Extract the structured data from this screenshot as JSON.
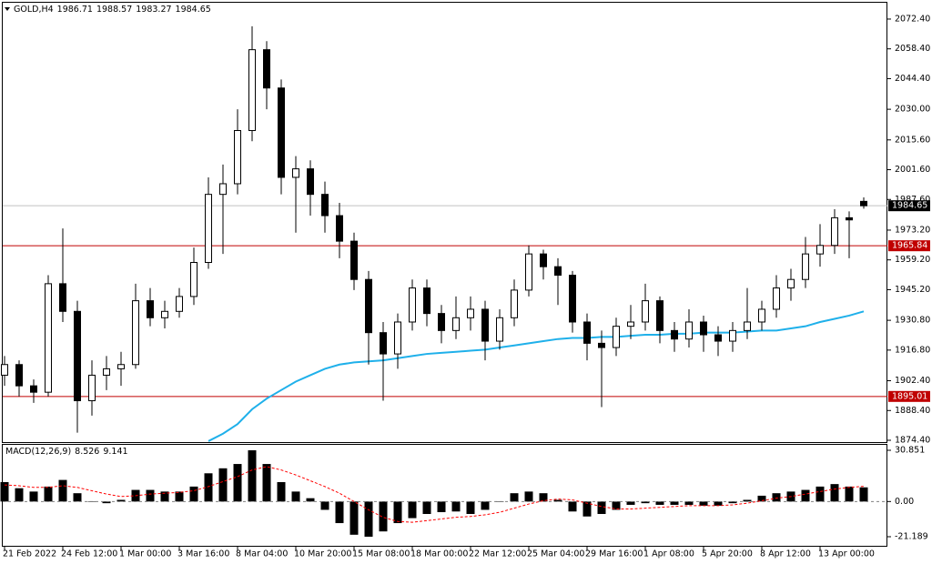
{
  "chart_data": [
    {
      "type": "candlestick",
      "symbol": "GOLD,H4",
      "categories": [
        "21 Feb 2022",
        null,
        null,
        null,
        "24 Feb 12:00",
        null,
        null,
        null,
        "1 Mar 00:00",
        null,
        null,
        null,
        "3 Mar 16:00",
        null,
        null,
        null,
        "8 Mar 04:00",
        null,
        null,
        null,
        "10 Mar 20:00",
        null,
        null,
        null,
        "15 Mar 08:00",
        null,
        null,
        null,
        "18 Mar 00:00",
        null,
        null,
        null,
        "22 Mar 12:00",
        null,
        null,
        null,
        "25 Mar 04:00",
        null,
        null,
        null,
        "29 Mar 16:00",
        null,
        null,
        null,
        "1 Apr 08:00",
        null,
        null,
        null,
        "5 Apr 20:00",
        null,
        null,
        null,
        "8 Apr 12:00",
        null,
        null,
        null,
        "13 Apr 00:00",
        null,
        null,
        null
      ],
      "open": [
        1905,
        1910,
        1900,
        1897,
        1948,
        1935,
        1893,
        1905,
        1908,
        1910,
        1940,
        1932,
        1935,
        1942,
        1958,
        1990,
        1995,
        2020,
        2058,
        2040,
        1998,
        2002,
        1990,
        1980,
        1968,
        1950,
        1925,
        1915,
        1930,
        1946,
        1934,
        1926,
        1932,
        1936,
        1921,
        1932,
        1945,
        1962,
        1956,
        1952,
        1930,
        1920,
        1918,
        1928,
        1930,
        1940,
        1926,
        1922,
        1930,
        1924,
        1921,
        1926,
        1930,
        1936,
        1946,
        1950,
        1962,
        1966,
        1979,
        1986.71
      ],
      "high": [
        1914,
        1912,
        1903,
        1952,
        1974,
        1940,
        1912,
        1914,
        1916,
        1948,
        1946,
        1940,
        1946,
        1965,
        1998,
        2004,
        2030,
        2069,
        2062,
        2044,
        2008,
        2006,
        1996,
        1986,
        1972,
        1954,
        1930,
        1934,
        1950,
        1950,
        1938,
        1942,
        1942,
        1940,
        1936,
        1950,
        1966,
        1964,
        1960,
        1954,
        1934,
        1926,
        1932,
        1938,
        1948,
        1942,
        1930,
        1936,
        1933,
        1928,
        1930,
        1946,
        1940,
        1952,
        1955,
        1970,
        1976,
        1983,
        1982,
        1988.57
      ],
      "low": [
        1900,
        1895,
        1892,
        1895,
        1930,
        1878,
        1886,
        1898,
        1900,
        1908,
        1928,
        1927,
        1932,
        1938,
        1955,
        1962,
        1990,
        2015,
        2030,
        1990,
        1972,
        1980,
        1972,
        1960,
        1945,
        1910,
        1893,
        1908,
        1926,
        1928,
        1920,
        1922,
        1926,
        1912,
        1917,
        1928,
        1942,
        1950,
        1938,
        1925,
        1912,
        1890,
        1914,
        1922,
        1926,
        1920,
        1916,
        1918,
        1916,
        1914,
        1916,
        1922,
        1926,
        1932,
        1940,
        1946,
        1956,
        1962,
        1960,
        1983.27
      ],
      "close": [
        1910,
        1900,
        1897,
        1948,
        1935,
        1893,
        1905,
        1908,
        1910,
        1940,
        1932,
        1935,
        1942,
        1958,
        1990,
        1995,
        2020,
        2058,
        2040,
        1998,
        2002,
        1990,
        1980,
        1968,
        1950,
        1925,
        1915,
        1930,
        1946,
        1934,
        1926,
        1932,
        1936,
        1921,
        1932,
        1945,
        1962,
        1956,
        1952,
        1930,
        1920,
        1918,
        1928,
        1930,
        1940,
        1926,
        1922,
        1930,
        1924,
        1921,
        1926,
        1930,
        1936,
        1946,
        1950,
        1962,
        1966,
        1979,
        1978,
        1984.65
      ],
      "ma": {
        "color": "#1fb0ea",
        "values": [
          null,
          null,
          null,
          null,
          null,
          null,
          null,
          null,
          null,
          null,
          null,
          null,
          null,
          null,
          1874,
          1877.5,
          1882,
          1889,
          1894,
          1898,
          1902,
          1905,
          1908,
          1910,
          1911,
          1911.5,
          1912,
          1913,
          1914,
          1915,
          1915.5,
          1916,
          1916.5,
          1917,
          1918,
          1919,
          1920,
          1921,
          1922,
          1922.5,
          1922.5,
          1923,
          1923,
          1923.5,
          1924,
          1924,
          1924.5,
          1924.5,
          1925,
          1925,
          1925,
          1925.5,
          1926,
          1926,
          1927,
          1928,
          1930,
          1931.5,
          1933,
          1935
        ]
      },
      "hlines": [
        {
          "value": 1965.84,
          "label": "1965.84",
          "color": "#c00000"
        },
        {
          "value": 1895.01,
          "label": "1895.01",
          "color": "#c00000"
        }
      ],
      "ylim": [
        1873.55,
        2080.08
      ],
      "yticks": [
        {
          "value": 2072.4,
          "label": "2072.40"
        },
        {
          "value": 2058.4,
          "label": "2058.40"
        },
        {
          "value": 2044.4,
          "label": "2044.40"
        },
        {
          "value": 2030,
          "label": "2030.00"
        },
        {
          "value": 2015.6,
          "label": "2015.60"
        },
        {
          "value": 2001.6,
          "label": "2001.60"
        },
        {
          "value": 1987.6,
          "label": "1987.60"
        },
        {
          "value": 1973.2,
          "label": "1973.20"
        },
        {
          "value": 1959.2,
          "label": "1959.20"
        },
        {
          "value": 1945.2,
          "label": "1945.20"
        },
        {
          "value": 1930.8,
          "label": "1930.80"
        },
        {
          "value": 1916.8,
          "label": "1916.80"
        },
        {
          "value": 1902.4,
          "label": "1902.40"
        },
        {
          "value": 1888.4,
          "label": "1888.40"
        },
        {
          "value": 1874.4,
          "label": "1874.40"
        }
      ]
    },
    {
      "type": "macd",
      "label": "MACD(12,26,9)",
      "color": "#000000",
      "signal_color": "#ff0000",
      "values": [
        11.7,
        8,
        6,
        9,
        13,
        5,
        0,
        -1,
        1,
        7,
        7,
        6,
        6,
        9,
        17,
        20,
        22.6,
        30.851,
        22.6,
        11.7,
        6,
        2,
        -5,
        -13,
        -20,
        -21.189,
        -18,
        -13,
        -10,
        -7.5,
        -6.4,
        -6,
        -7.5,
        -5,
        0,
        5,
        6,
        5,
        1,
        -6,
        -9,
        -7.5,
        -5,
        -2,
        -1,
        -2,
        -2,
        -2,
        -2.5,
        -2.5,
        -1,
        1,
        3.5,
        5,
        6,
        7,
        9,
        10.5,
        9,
        8.526
      ],
      "signal": [
        10,
        9.5,
        8.5,
        8.5,
        9.5,
        8.5,
        6.5,
        4.5,
        3,
        3.5,
        4.5,
        5,
        5.5,
        6.5,
        9,
        12,
        15,
        19,
        21,
        19,
        16,
        12.5,
        9,
        5,
        0,
        -5,
        -9.5,
        -12,
        -12.5,
        -11.5,
        -10.5,
        -9.5,
        -9,
        -8,
        -6.5,
        -4,
        -1.5,
        0.5,
        1.5,
        1,
        -1,
        -3,
        -4.5,
        -4.5,
        -4,
        -3.5,
        -3,
        -2.5,
        -2.5,
        -2.5,
        -2,
        -1,
        0.5,
        2,
        3,
        4.5,
        6,
        7.5,
        8.5,
        9.141
      ],
      "ylim": [
        -26.67,
        34.14
      ],
      "yticks": [
        30.851,
        {
          "value": 0,
          "label": "0.00"
        },
        -21.189
      ]
    }
  ]
}
